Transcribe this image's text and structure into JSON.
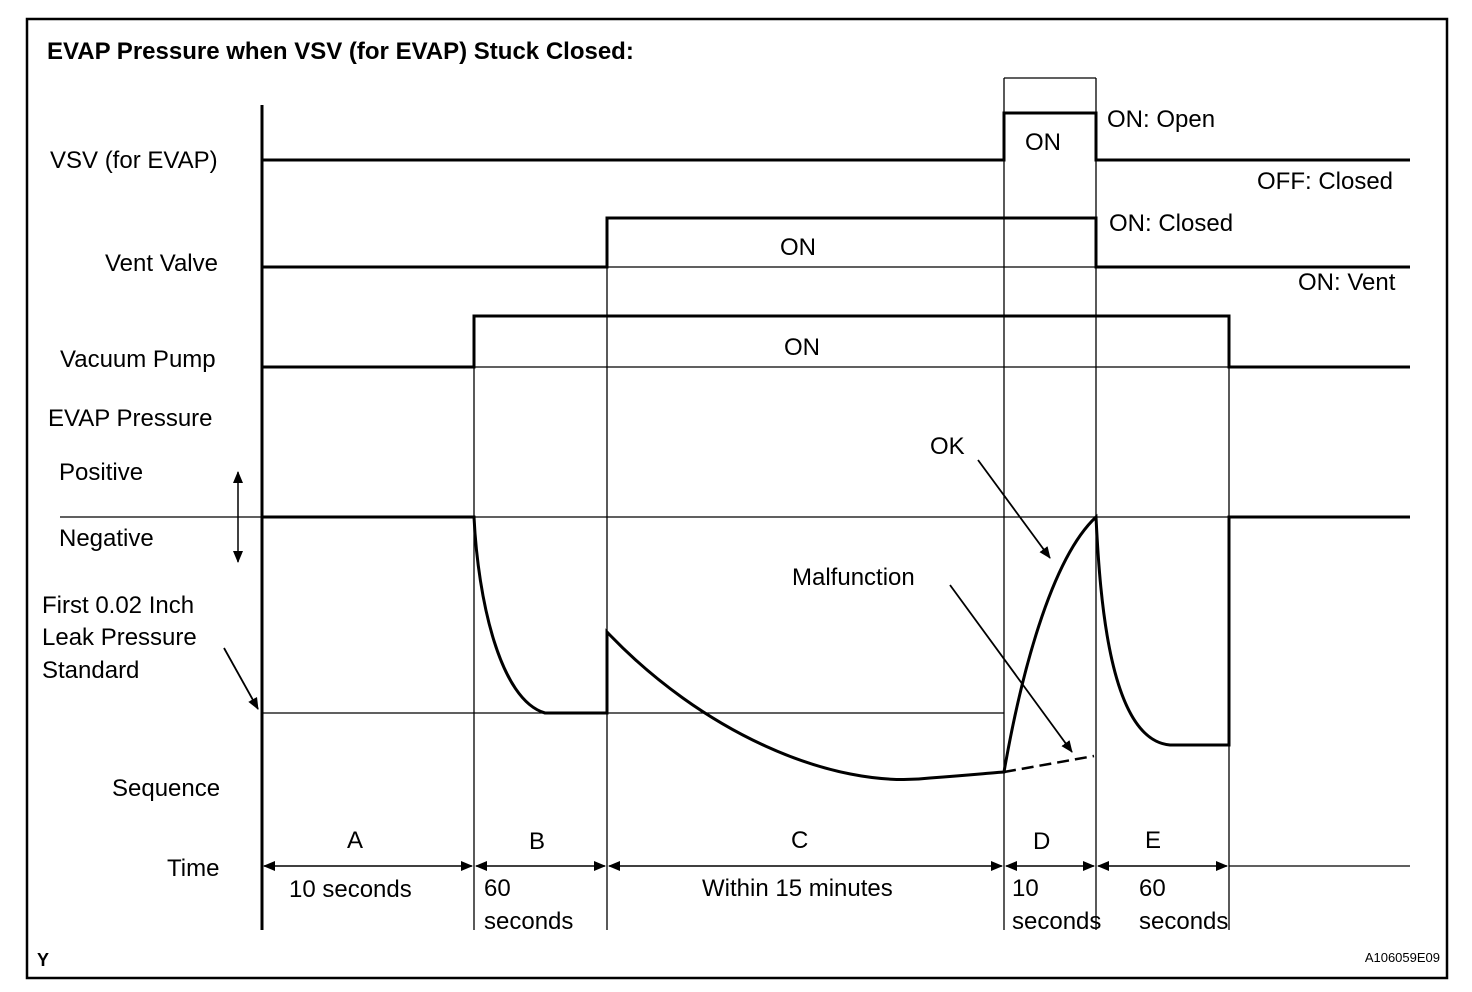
{
  "title": "EVAP Pressure when VSV (for EVAP) Stuck Closed:",
  "signals": {
    "vsv": "VSV (for EVAP)",
    "vent_valve": "Vent Valve",
    "vacuum_pump": "Vacuum Pump",
    "evap_pressure": "EVAP Pressure",
    "positive": "Positive",
    "negative": "Negative",
    "leak_std_1": "First 0.02 Inch",
    "leak_std_2": "Leak Pressure",
    "leak_std_3": "Standard",
    "sequence": "Sequence",
    "time": "Time"
  },
  "states": {
    "vsv_on": "ON",
    "vent_on": "ON",
    "pump_on": "ON",
    "vsv_on_state": "ON: Open",
    "vsv_off_state": "OFF: Closed",
    "vent_on_state": "ON: Closed",
    "vent_off_state": "ON: Vent"
  },
  "annotations": {
    "ok": "OK",
    "malfunction": "Malfunction"
  },
  "sequence": [
    {
      "id": "A",
      "time_1": "10 seconds",
      "time_2": ""
    },
    {
      "id": "B",
      "time_1": "60",
      "time_2": "seconds"
    },
    {
      "id": "C",
      "time_1": "Within 15 minutes",
      "time_2": ""
    },
    {
      "id": "D",
      "time_1": "10",
      "time_2": "seconds"
    },
    {
      "id": "E",
      "time_1": "60",
      "time_2": "seconds"
    }
  ],
  "footer": {
    "corner_mark": "Y",
    "figure_id": "A106059E09"
  }
}
